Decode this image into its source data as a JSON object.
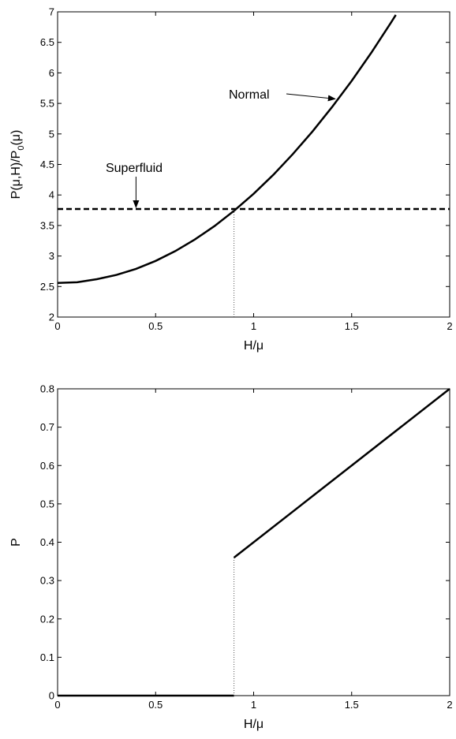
{
  "chart_data": [
    {
      "type": "line",
      "xlabel": "H/μ",
      "ylabel": "P(μ,H)/P_0(μ)",
      "ylabel_parts": {
        "main": "P(μ,H)/P",
        "subscript": "0",
        "suffix": "(μ)"
      },
      "xlim": [
        0,
        2
      ],
      "ylim": [
        2,
        7
      ],
      "xticks": [
        "0",
        "0.5",
        "1",
        "1.5",
        "2"
      ],
      "xtick_values": [
        0,
        0.5,
        1,
        1.5,
        2
      ],
      "yticks": [
        "2",
        "2.5",
        "3",
        "3.5",
        "4",
        "4.5",
        "5",
        "5.5",
        "6",
        "6.5",
        "7"
      ],
      "ytick_values": [
        2,
        2.5,
        3,
        3.5,
        4,
        4.5,
        5,
        5.5,
        6,
        6.5,
        7
      ],
      "grid": false,
      "series": [
        {
          "style": "solid",
          "x": [
            0,
            0.1,
            0.2,
            0.3,
            0.4,
            0.5,
            0.6,
            0.7,
            0.8,
            0.9,
            1.0,
            1.1,
            1.2,
            1.3,
            1.4,
            1.5,
            1.6,
            1.7,
            1.725
          ],
          "y": [
            2.56,
            2.57,
            2.62,
            2.69,
            2.79,
            2.92,
            3.08,
            3.27,
            3.49,
            3.74,
            4.02,
            4.33,
            4.67,
            5.04,
            5.44,
            5.87,
            6.33,
            6.82,
            6.95
          ]
        },
        {
          "style": "dashed",
          "x": [
            0,
            2
          ],
          "y": [
            3.77,
            3.77
          ]
        },
        {
          "style": "dotted",
          "x": [
            0.9,
            0.9
          ],
          "y": [
            2,
            3.77
          ]
        }
      ],
      "annotations": [
        {
          "text": "Normal",
          "target_x": 1.42,
          "target_y": 5.6
        },
        {
          "text": "Superfluid",
          "target_x": 0.4,
          "target_y": 3.77
        }
      ]
    },
    {
      "type": "line",
      "xlabel": "H/μ",
      "ylabel": "P",
      "xlim": [
        0,
        2
      ],
      "ylim": [
        0,
        0.8
      ],
      "xticks": [
        "0",
        "0.5",
        "1",
        "1.5",
        "2"
      ],
      "xtick_values": [
        0,
        0.5,
        1,
        1.5,
        2
      ],
      "yticks": [
        "0",
        "0.1",
        "0.2",
        "0.3",
        "0.4",
        "0.5",
        "0.6",
        "0.7",
        "0.8"
      ],
      "ytick_values": [
        0,
        0.1,
        0.2,
        0.3,
        0.4,
        0.5,
        0.6,
        0.7,
        0.8
      ],
      "grid": false,
      "series": [
        {
          "style": "solid",
          "x": [
            0,
            0.9
          ],
          "y": [
            0,
            0
          ]
        },
        {
          "style": "solid",
          "x": [
            0.9,
            2
          ],
          "y": [
            0.36,
            0.8
          ]
        },
        {
          "style": "dotted",
          "x": [
            0.9,
            0.9
          ],
          "y": [
            0,
            0.36
          ]
        }
      ]
    }
  ]
}
